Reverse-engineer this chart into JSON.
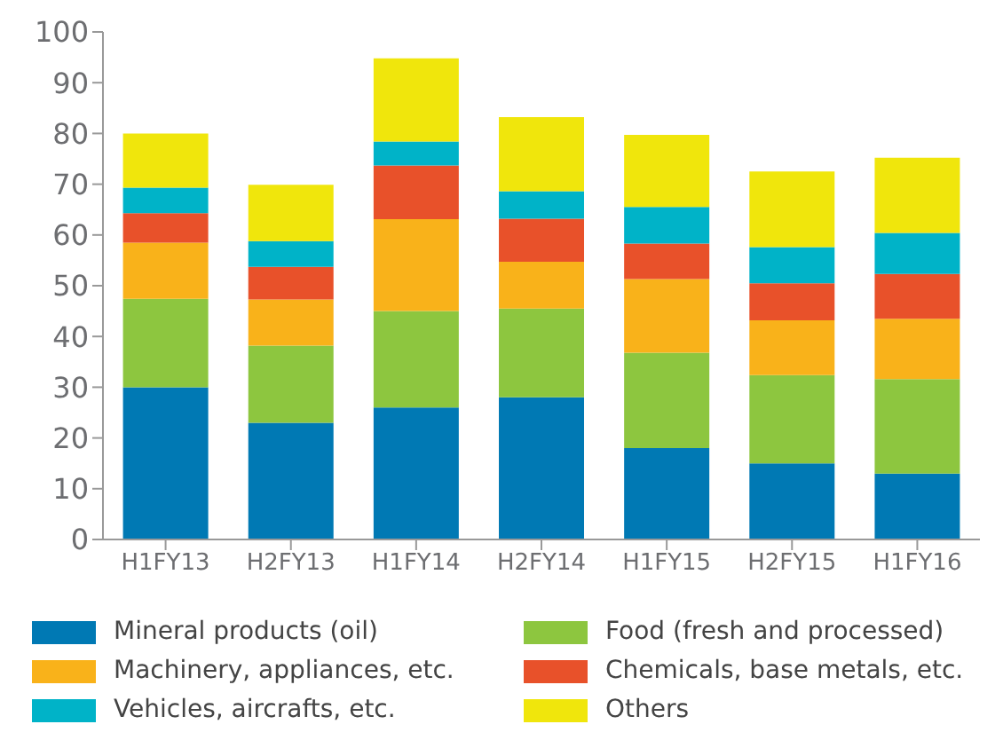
{
  "chart_data": {
    "type": "bar",
    "stacked": true,
    "categories": [
      "H1FY13",
      "H2FY13",
      "H1FY14",
      "H2FY14",
      "H1FY15",
      "H2FY15",
      "H1FY16"
    ],
    "series": [
      {
        "name": "Mineral products (oil)",
        "color": "#0079b4",
        "values": [
          30,
          23,
          26,
          28,
          18,
          15,
          13
        ]
      },
      {
        "name": "Food (fresh and processed)",
        "color": "#8dc63f",
        "values": [
          17.4,
          15.2,
          19,
          17.5,
          18.8,
          17.4,
          18.6
        ]
      },
      {
        "name": "Machinery, appliances, etc.",
        "color": "#f9b21a",
        "values": [
          11.1,
          9.1,
          18.1,
          9.2,
          14.5,
          10.8,
          11.9
        ]
      },
      {
        "name": "Chemicals, base metals, etc.",
        "color": "#e8512a",
        "values": [
          5.8,
          6.4,
          10.6,
          8.5,
          7,
          7.3,
          8.8
        ]
      },
      {
        "name": "Vehicles, aircrafts, etc.",
        "color": "#00b3c8",
        "values": [
          5,
          5.1,
          4.7,
          5.4,
          7.2,
          7.1,
          8.1
        ]
      },
      {
        "name": "Others",
        "color": "#f0e60c",
        "values": [
          10.7,
          11.1,
          16.4,
          14.6,
          14.2,
          14.9,
          14.8
        ]
      }
    ],
    "ylim": [
      0,
      100
    ],
    "yticks": [
      0,
      10,
      20,
      30,
      40,
      50,
      60,
      70,
      80,
      90,
      100
    ],
    "grid": false,
    "legend": "bottom"
  }
}
